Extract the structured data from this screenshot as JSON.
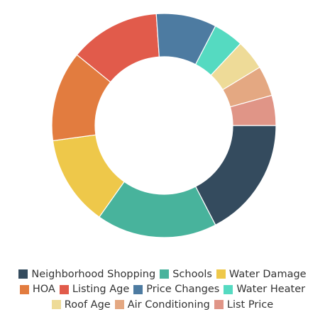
{
  "chart_data": {
    "type": "pie",
    "variant": "donut",
    "title": "",
    "series": [
      {
        "name": "Neighborhood Shopping",
        "value": 18.0,
        "color": "#344b5e"
      },
      {
        "name": "Schools",
        "value": 18.0,
        "color": "#48b39c"
      },
      {
        "name": "Water Damage",
        "value": 13.5,
        "color": "#eec84a"
      },
      {
        "name": "HOA",
        "value": 13.5,
        "color": "#e27c3f"
      },
      {
        "name": "Listing Age",
        "value": 13.5,
        "color": "#e15b4b"
      },
      {
        "name": "Price Changes",
        "value": 9.0,
        "color": "#4d7ba1"
      },
      {
        "name": "Water Heater",
        "value": 4.5,
        "color": "#55dac1"
      },
      {
        "name": "Roof Age",
        "value": 4.5,
        "color": "#eedb98"
      },
      {
        "name": "Air Conditioning",
        "value": 4.5,
        "color": "#e4a882"
      },
      {
        "name": "List Price",
        "value": 4.5,
        "color": "#e09587"
      }
    ],
    "legend_position": "bottom",
    "start_angle_deg": 0,
    "direction": "clockwise from 3 o'clock",
    "legend_rows": [
      [
        "Neighborhood Shopping",
        "Schools",
        "Water Damage"
      ],
      [
        "HOA",
        "Listing Age",
        "Price Changes",
        "Water Heater"
      ],
      [
        "Roof Age",
        "Air Conditioning",
        "List Price"
      ]
    ]
  }
}
